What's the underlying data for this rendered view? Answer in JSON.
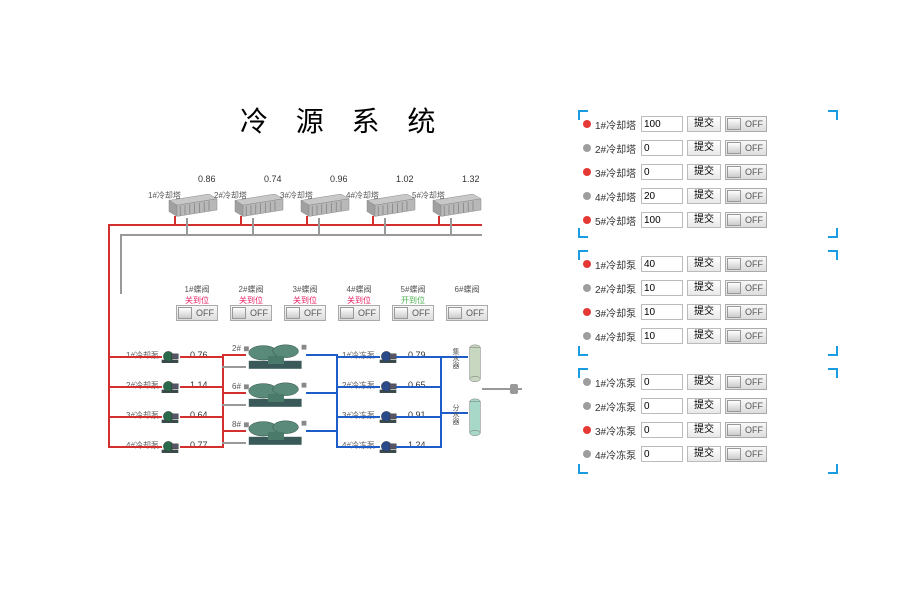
{
  "title": "冷 源 系 统",
  "colors": {
    "red": "#d32f2f",
    "blue": "#1e5cc8",
    "gray": "#999999",
    "corner": "#1a9de0",
    "magenta": "#e91e63",
    "green": "#4caf50"
  },
  "towers": [
    {
      "label": "1#冷却塔",
      "value": 0.86
    },
    {
      "label": "2#冷却塔",
      "value": 0.74
    },
    {
      "label": "3#冷却塔",
      "value": 0.96
    },
    {
      "label": "4#冷却塔",
      "value": 1.02
    },
    {
      "label": "5#冷却塔",
      "value": 1.32
    }
  ],
  "valves": [
    {
      "label": "1#蝶阀",
      "state": "关到位",
      "off": "OFF"
    },
    {
      "label": "2#蝶阀",
      "state": "关到位",
      "off": "OFF"
    },
    {
      "label": "3#蝶阀",
      "state": "关到位",
      "off": "OFF"
    },
    {
      "label": "4#蝶阀",
      "state": "关到位",
      "off": "OFF"
    },
    {
      "label": "5#蝶阀",
      "state": "开到位",
      "on": true,
      "off": "OFF"
    },
    {
      "label": "6#蝶阀",
      "state": "",
      "off": "OFF"
    }
  ],
  "cool_pumps": [
    {
      "label": "1#冷却泵",
      "value": 0.76
    },
    {
      "label": "2#冷却泵",
      "value": 1.14
    },
    {
      "label": "3#冷却泵",
      "value": 0.64
    },
    {
      "label": "4#冷却泵",
      "value": 0.77
    }
  ],
  "freeze_pumps": [
    {
      "label": "1#冷冻泵",
      "value": 0.79
    },
    {
      "label": "2#冷冻泵",
      "value": 0.65
    },
    {
      "label": "3#冷冻泵",
      "value": 0.91
    },
    {
      "label": "4#冷冻泵",
      "value": 1.24
    }
  ],
  "chillers": [
    {
      "id": "2#"
    },
    {
      "id": "6#"
    },
    {
      "id": "8#"
    }
  ],
  "tanks": [
    {
      "label": "集水器"
    },
    {
      "label": "分水器"
    }
  ],
  "panels": {
    "tower": {
      "rows": [
        {
          "dot": "on",
          "label": "1#冷却塔",
          "value": "100",
          "btn": "提交",
          "off": "OFF"
        },
        {
          "dot": "off",
          "label": "2#冷却塔",
          "value": "0",
          "btn": "提交",
          "off": "OFF"
        },
        {
          "dot": "on",
          "label": "3#冷却塔",
          "value": "0",
          "btn": "提交",
          "off": "OFF"
        },
        {
          "dot": "off",
          "label": "4#冷却塔",
          "value": "20",
          "btn": "提交",
          "off": "OFF"
        },
        {
          "dot": "on",
          "label": "5#冷却塔",
          "value": "100",
          "btn": "提交",
          "off": "OFF"
        }
      ]
    },
    "cool_pump": {
      "rows": [
        {
          "dot": "on",
          "label": "1#冷却泵",
          "value": "40",
          "btn": "提交",
          "off": "OFF"
        },
        {
          "dot": "off",
          "label": "2#冷却泵",
          "value": "10",
          "btn": "提交",
          "off": "OFF"
        },
        {
          "dot": "on",
          "label": "3#冷却泵",
          "value": "10",
          "btn": "提交",
          "off": "OFF"
        },
        {
          "dot": "off",
          "label": "4#冷却泵",
          "value": "10",
          "btn": "提交",
          "off": "OFF"
        }
      ]
    },
    "freeze_pump": {
      "rows": [
        {
          "dot": "off",
          "label": "1#冷冻泵",
          "value": "0",
          "btn": "提交",
          "off": "OFF"
        },
        {
          "dot": "off",
          "label": "2#冷冻泵",
          "value": "0",
          "btn": "提交",
          "off": "OFF"
        },
        {
          "dot": "on",
          "label": "3#冷冻泵",
          "value": "0",
          "btn": "提交",
          "off": "OFF"
        },
        {
          "dot": "off",
          "label": "4#冷冻泵",
          "value": "0",
          "btn": "提交",
          "off": "OFF"
        }
      ]
    }
  }
}
